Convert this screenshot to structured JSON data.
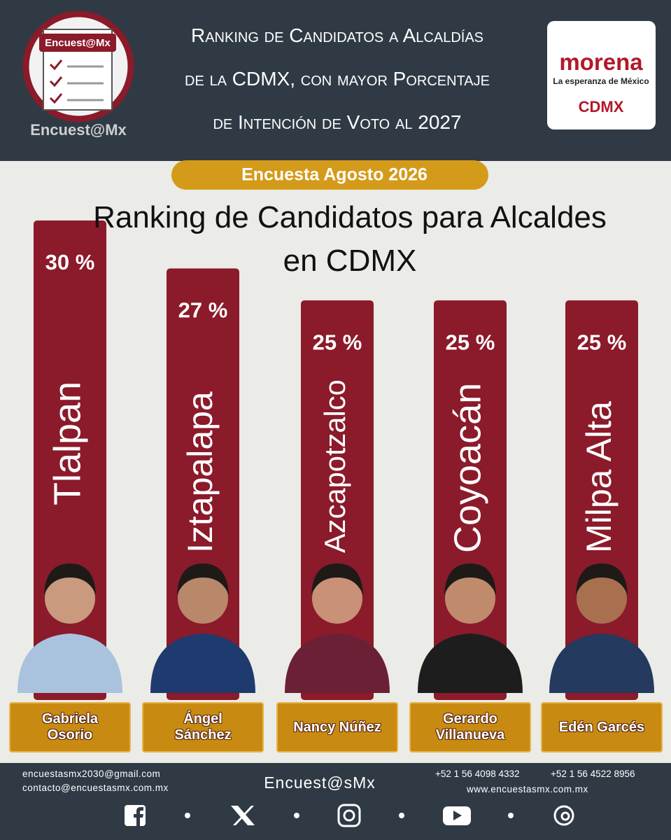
{
  "header": {
    "logo_badge": "Encuest@Mx",
    "logo_caption": "Encuest@Mx",
    "title_lines": [
      "Ranking de Candidatos a Alcaldías",
      "de la CDMX, con mayor Porcentaje",
      "de Intención de Voto al 2027"
    ],
    "party": "morena",
    "party_tagline": "La esperanza de México",
    "party_region": "CDMX"
  },
  "chart_data": {
    "type": "bar",
    "subtitle": "Encuesta Agosto 2026",
    "title": "Ranking de Candidatos para Alcaldes en CDMX",
    "categories": [
      "Tlalpan",
      "Iztapalapa",
      "Azcapotzalco",
      "Coyoacán",
      "Milpa Alta"
    ],
    "candidates": [
      "Gabriela Osorio",
      "Ángel Sánchez",
      "Nancy Núñez",
      "Gerardo Villanueva",
      "Edén Garcés"
    ],
    "values": [
      30,
      27,
      25,
      25,
      25
    ],
    "value_labels": [
      "30 %",
      "27 %",
      "25 %",
      "25 %",
      "25 %"
    ],
    "color": "#8b1a2a"
  },
  "footer": {
    "emails": [
      "encuestasmx2030@gmail.com",
      "contacto@encuestasmx.com.mx"
    ],
    "brand": "Encuest@sMx",
    "phones": [
      "+52 1 56 4098 4332",
      "+52 1 56 4522 8956"
    ],
    "website": "www.encuestasmx.com.mx"
  }
}
